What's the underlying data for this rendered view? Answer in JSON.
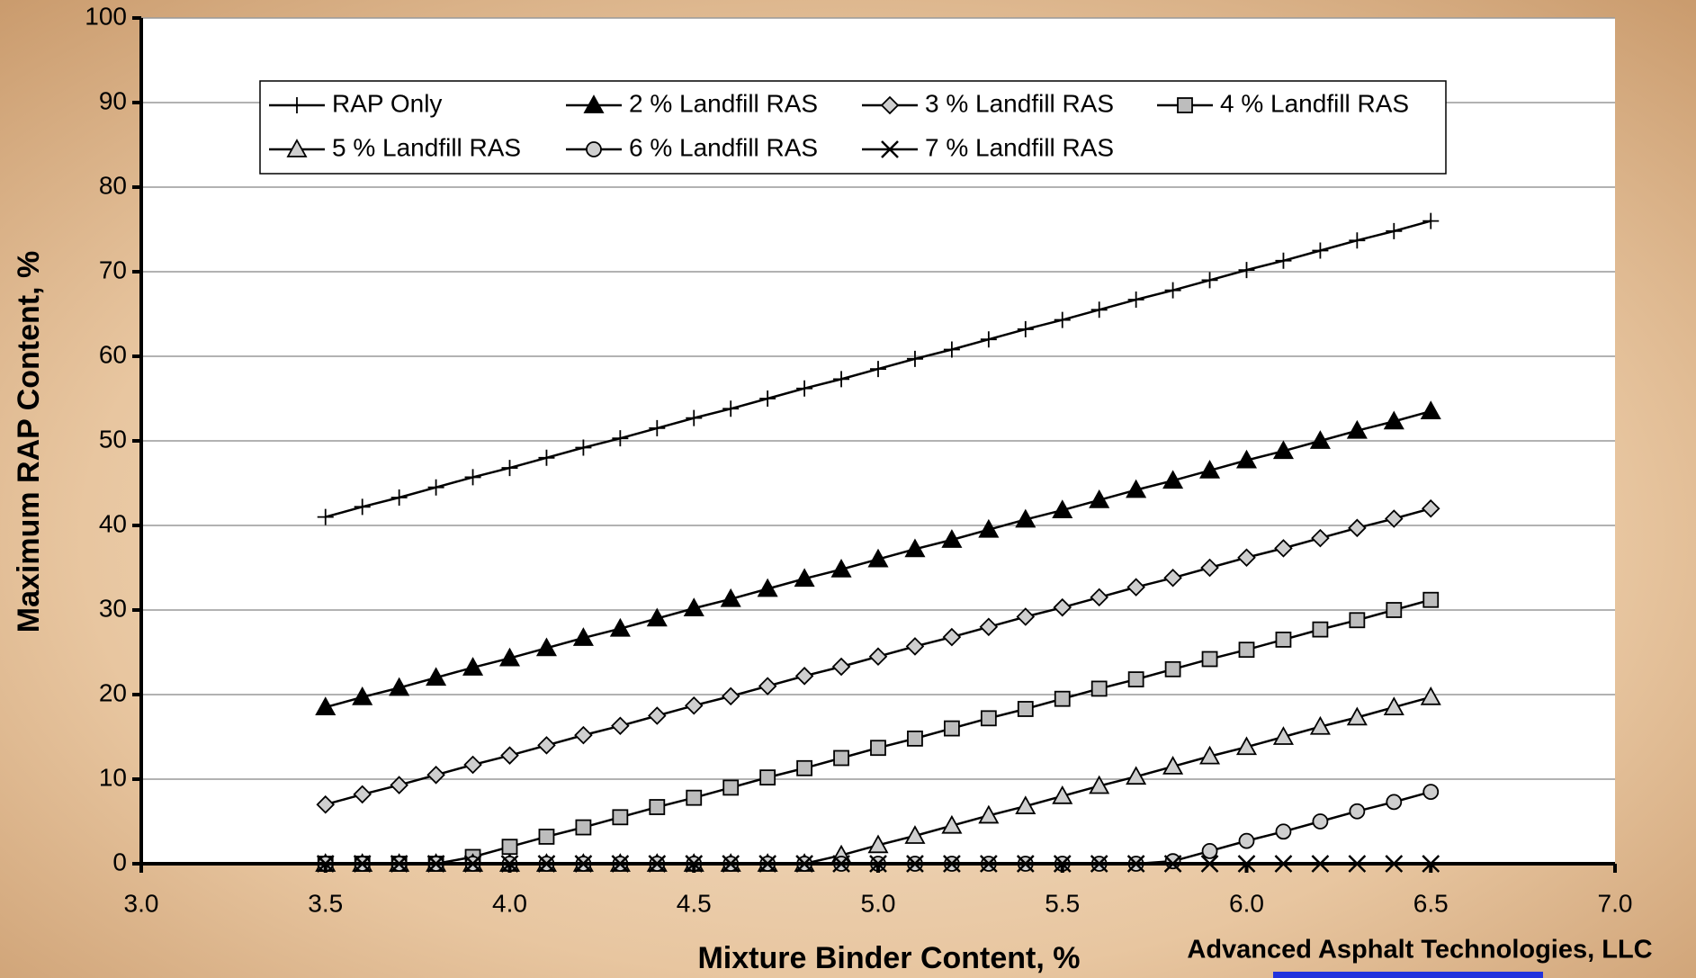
{
  "chart_data": {
    "type": "line",
    "x_label": "Mixture Binder Content, %",
    "y_label": "Maximum RAP Content, %",
    "footer": "Advanced Asphalt Technologies, LLC",
    "x": [
      3.5,
      3.6,
      3.7,
      3.8,
      3.9,
      4.0,
      4.1,
      4.2,
      4.3,
      4.4,
      4.5,
      4.6,
      4.7,
      4.8,
      4.9,
      5.0,
      5.1,
      5.2,
      5.3,
      5.4,
      5.5,
      5.6,
      5.7,
      5.8,
      5.9,
      6.0,
      6.1,
      6.2,
      6.3,
      6.4,
      6.5
    ],
    "series": [
      {
        "name": "RAP Only",
        "color": "#000000",
        "marker": "plus",
        "values": [
          41.0,
          42.2,
          43.3,
          44.5,
          45.7,
          46.8,
          48.0,
          49.2,
          50.3,
          51.5,
          52.7,
          53.8,
          55.0,
          56.2,
          57.3,
          58.5,
          59.7,
          60.8,
          62.0,
          63.2,
          64.3,
          65.5,
          66.7,
          67.8,
          69.0,
          70.2,
          71.3,
          72.5,
          73.7,
          74.8,
          76.0
        ]
      },
      {
        "name": "2 % Landfill RAS",
        "color": "#000000",
        "marker": "triangle-filled",
        "values": [
          18.5,
          19.7,
          20.8,
          22.0,
          23.2,
          24.3,
          25.5,
          26.7,
          27.8,
          29.0,
          30.2,
          31.3,
          32.5,
          33.7,
          34.8,
          36.0,
          37.2,
          38.3,
          39.5,
          40.7,
          41.8,
          43.0,
          44.2,
          45.3,
          46.5,
          47.7,
          48.8,
          50.0,
          51.2,
          52.3,
          53.5
        ]
      },
      {
        "name": "3 % Landfill RAS",
        "color": "#000000",
        "marker": "diamond",
        "values": [
          7.0,
          8.2,
          9.3,
          10.5,
          11.7,
          12.8,
          14.0,
          15.2,
          16.3,
          17.5,
          18.7,
          19.8,
          21.0,
          22.2,
          23.3,
          24.5,
          25.7,
          26.8,
          28.0,
          29.2,
          30.3,
          31.5,
          32.7,
          33.8,
          35.0,
          36.2,
          37.3,
          38.5,
          39.7,
          40.8,
          42.0
        ]
      },
      {
        "name": "4 % Landfill RAS",
        "color": "#000000",
        "marker": "square",
        "values": [
          0,
          0,
          0,
          0,
          0.8,
          2.0,
          3.2,
          4.3,
          5.5,
          6.7,
          7.8,
          9.0,
          10.2,
          11.3,
          12.5,
          13.7,
          14.8,
          16.0,
          17.2,
          18.3,
          19.5,
          20.7,
          21.8,
          23.0,
          24.2,
          25.3,
          26.5,
          27.7,
          28.8,
          30.0,
          31.2
        ]
      },
      {
        "name": "5 % Landfill RAS",
        "color": "#000000",
        "marker": "triangle",
        "values": [
          0,
          0,
          0,
          0,
          0,
          0,
          0,
          0,
          0,
          0,
          0,
          0,
          0,
          0,
          1.0,
          2.2,
          3.3,
          4.5,
          5.7,
          6.8,
          8.0,
          9.2,
          10.3,
          11.5,
          12.7,
          13.8,
          15.0,
          16.2,
          17.3,
          18.5,
          19.7
        ]
      },
      {
        "name": "6 % Landfill RAS",
        "color": "#000000",
        "marker": "circle",
        "values": [
          0,
          0,
          0,
          0,
          0,
          0,
          0,
          0,
          0,
          0,
          0,
          0,
          0,
          0,
          0,
          0,
          0,
          0,
          0,
          0,
          0,
          0,
          0,
          0.3,
          1.5,
          2.7,
          3.8,
          5.0,
          6.2,
          7.3,
          8.5
        ]
      },
      {
        "name": "7 % Landfill RAS",
        "color": "#000000",
        "marker": "x",
        "values": [
          0,
          0,
          0,
          0,
          0,
          0,
          0,
          0,
          0,
          0,
          0,
          0,
          0,
          0,
          0,
          0,
          0,
          0,
          0,
          0,
          0,
          0,
          0,
          0,
          0,
          0,
          0,
          0,
          0,
          0,
          0
        ]
      }
    ],
    "xlim": [
      3.0,
      7.0
    ],
    "xticks": [
      {
        "value": 3.0,
        "label": "3.0"
      },
      {
        "value": 3.5,
        "label": "3.5"
      },
      {
        "value": 4.0,
        "label": "4.0"
      },
      {
        "value": 4.5,
        "label": "4.5"
      },
      {
        "value": 5.0,
        "label": "5.0"
      },
      {
        "value": 5.5,
        "label": "5.5"
      },
      {
        "value": 6.0,
        "label": "6.0"
      },
      {
        "value": 6.5,
        "label": "6.5"
      },
      {
        "value": 7.0,
        "label": "7.0"
      }
    ],
    "ylim": [
      0,
      100
    ],
    "yticks": [
      0,
      10,
      20,
      30,
      40,
      50,
      60,
      70,
      80,
      90,
      100
    ],
    "grid": true
  }
}
